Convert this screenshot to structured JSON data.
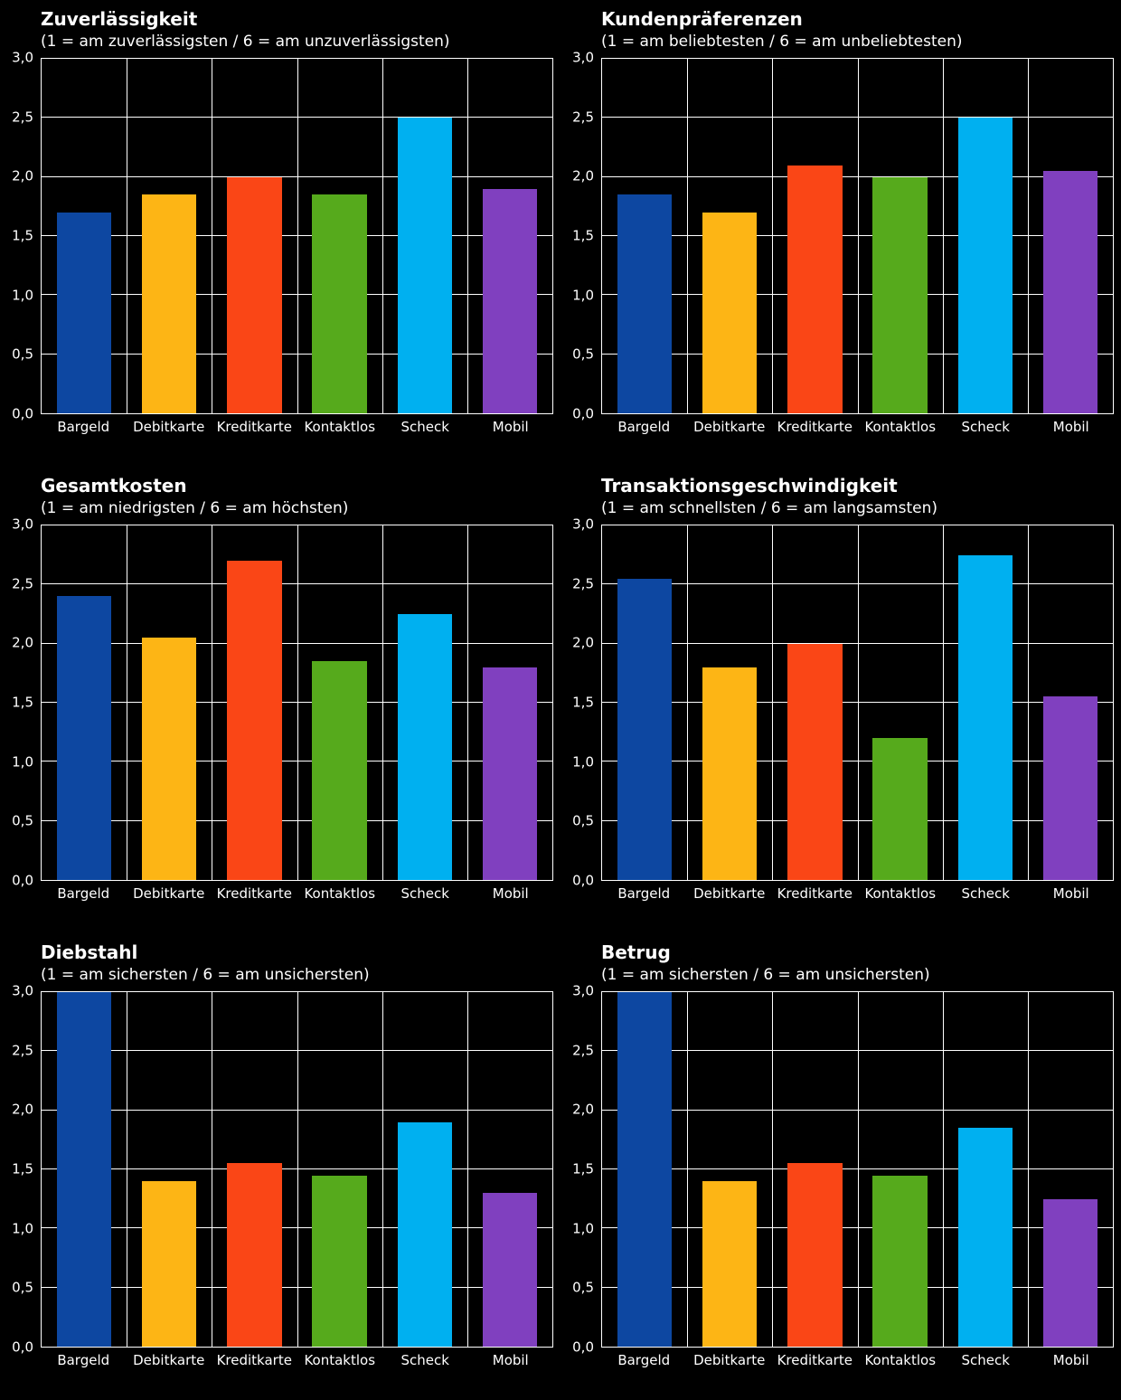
{
  "colors": {
    "background": "#000000",
    "grid": "#ffffff",
    "text": "#ffffff",
    "bars": [
      "#0D47A1",
      "#FDB515",
      "#FA4616",
      "#56AA1C",
      "#00B0F0",
      "#8040BF"
    ]
  },
  "chart_data": [
    {
      "type": "bar",
      "title": "Zuverlässigkeit",
      "subtitle": "(1 = am zuverlässigsten / 6 = am unzuverlässigsten)",
      "categories": [
        "Bargeld",
        "Debitkarte",
        "Kreditkarte",
        "Kontaktlos",
        "Scheck",
        "Mobil"
      ],
      "values": [
        1.7,
        1.85,
        2.0,
        1.85,
        2.5,
        1.9
      ],
      "xlabel": "",
      "ylabel": "",
      "ylim": [
        0,
        3
      ],
      "yticks": [
        "0,0",
        "0,5",
        "1,0",
        "1,5",
        "2,0",
        "2,5",
        "3,0"
      ],
      "grid": true,
      "legend": false
    },
    {
      "type": "bar",
      "title": "Kundenpräferenzen",
      "subtitle": "(1 = am beliebtesten / 6 = am unbeliebtesten)",
      "categories": [
        "Bargeld",
        "Debitkarte",
        "Kreditkarte",
        "Kontaktlos",
        "Scheck",
        "Mobil"
      ],
      "values": [
        1.85,
        1.7,
        2.1,
        2.0,
        2.5,
        2.05
      ],
      "xlabel": "",
      "ylabel": "",
      "ylim": [
        0,
        3
      ],
      "yticks": [
        "0,0",
        "0,5",
        "1,0",
        "1,5",
        "2,0",
        "2,5",
        "3,0"
      ],
      "grid": true,
      "legend": false
    },
    {
      "type": "bar",
      "title": "Gesamtkosten",
      "subtitle": "(1 = am niedrigsten / 6 = am höchsten)",
      "categories": [
        "Bargeld",
        "Debitkarte",
        "Kreditkarte",
        "Kontaktlos",
        "Scheck",
        "Mobil"
      ],
      "values": [
        2.4,
        2.05,
        2.7,
        1.85,
        2.25,
        1.8
      ],
      "xlabel": "",
      "ylabel": "",
      "ylim": [
        0,
        3
      ],
      "yticks": [
        "0,0",
        "0,5",
        "1,0",
        "1,5",
        "2,0",
        "2,5",
        "3,0"
      ],
      "grid": true,
      "legend": false
    },
    {
      "type": "bar",
      "title": "Transaktionsgeschwindigkeit",
      "subtitle": "(1 = am schnellsten / 6 = am langsamsten)",
      "categories": [
        "Bargeld",
        "Debitkarte",
        "Kreditkarte",
        "Kontaktlos",
        "Scheck",
        "Mobil"
      ],
      "values": [
        2.55,
        1.8,
        2.0,
        1.2,
        2.75,
        1.55
      ],
      "xlabel": "",
      "ylabel": "",
      "ylim": [
        0,
        3
      ],
      "yticks": [
        "0,0",
        "0,5",
        "1,0",
        "1,5",
        "2,0",
        "2,5",
        "3,0"
      ],
      "grid": true,
      "legend": false
    },
    {
      "type": "bar",
      "title": "Diebstahl",
      "subtitle": "(1 = am sichersten / 6 = am unsichersten)",
      "categories": [
        "Bargeld",
        "Debitkarte",
        "Kreditkarte",
        "Kontaktlos",
        "Scheck",
        "Mobil"
      ],
      "values": [
        3.0,
        1.4,
        1.55,
        1.45,
        1.9,
        1.3
      ],
      "xlabel": "",
      "ylabel": "",
      "ylim": [
        0,
        3
      ],
      "yticks": [
        "0,0",
        "0,5",
        "1,0",
        "1,5",
        "2,0",
        "2,5",
        "3,0"
      ],
      "grid": true,
      "legend": false
    },
    {
      "type": "bar",
      "title": "Betrug",
      "subtitle": "(1 = am sichersten / 6 = am unsichersten)",
      "categories": [
        "Bargeld",
        "Debitkarte",
        "Kreditkarte",
        "Kontaktlos",
        "Scheck",
        "Mobil"
      ],
      "values": [
        3.0,
        1.4,
        1.55,
        1.45,
        1.85,
        1.25
      ],
      "xlabel": "",
      "ylabel": "",
      "ylim": [
        0,
        3
      ],
      "yticks": [
        "0,0",
        "0,5",
        "1,0",
        "1,5",
        "2,0",
        "2,5",
        "3,0"
      ],
      "grid": true,
      "legend": false
    }
  ]
}
